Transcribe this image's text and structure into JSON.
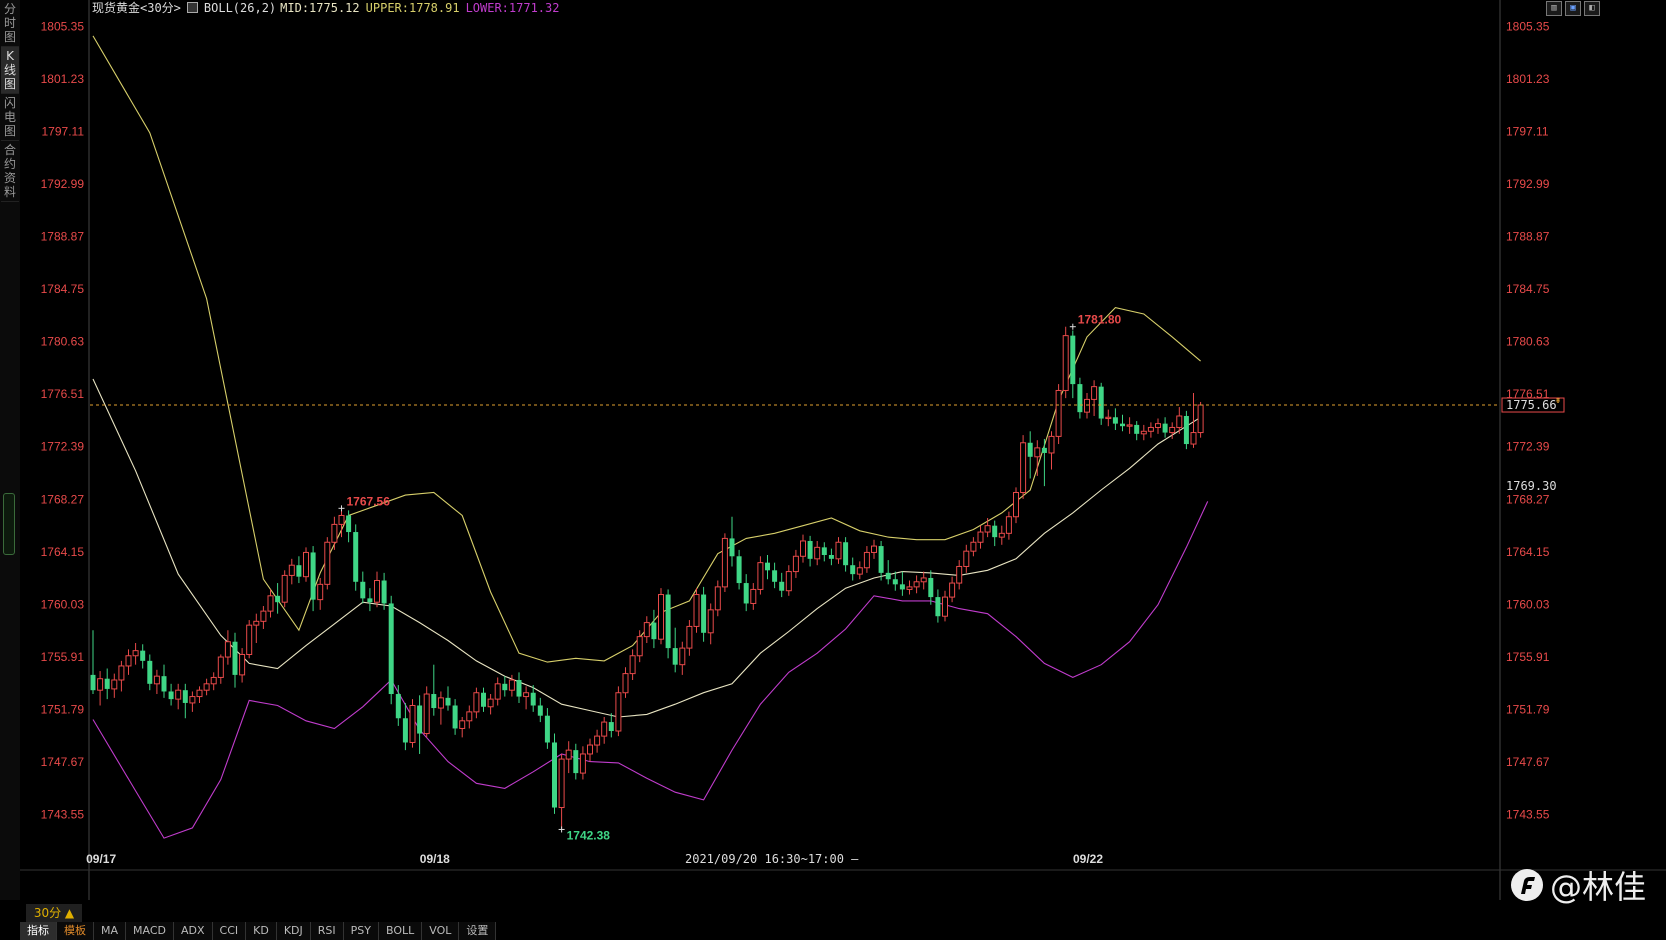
{
  "side_tabs": [
    "分时图",
    "K线图",
    "闪电图",
    "合约资料"
  ],
  "header": {
    "symbol": "现货黄金<30分>",
    "boll": "BOLL(26,2)",
    "mid": "MID:1775.12",
    "upper": "UPPER:1778.91",
    "lower": "LOWER:1771.32"
  },
  "period_button": "30分 ▲",
  "status_text": "2021/09/20 16:30~17:00 —",
  "bottom_tabs": [
    "指标",
    "模板",
    "MA",
    "MACD",
    "ADX",
    "CCI",
    "KD",
    "KDJ",
    "RSI",
    "PSY",
    "BOLL",
    "VOL",
    "设置"
  ],
  "watermark": "@林佳",
  "colors": {
    "up": "#e84a4a",
    "down": "#3fd686",
    "upper": "#d7cf6a",
    "mid": "#e8e4c2",
    "lower": "#c03ccc",
    "axis_label": "#e84a4a",
    "price_line": "#e0a030"
  },
  "chart_data": {
    "type": "candlestick",
    "y_ticks": [
      "1805.35",
      "1801.23",
      "1797.11",
      "1792.99",
      "1788.87",
      "1784.75",
      "1780.63",
      "1776.51",
      "1772.39",
      "1768.27",
      "1764.15",
      "1760.03",
      "1755.91",
      "1751.79",
      "1747.67",
      "1743.55"
    ],
    "ylim": [
      1740.77,
      1806.24
    ],
    "x_labels": [
      {
        "label": "09/17",
        "index": 1
      },
      {
        "label": "09/18",
        "index": 48
      },
      {
        "label": "09/22",
        "index": 140
      }
    ],
    "current_price": 1775.66,
    "current_price_label": "1775.66",
    "right_label_2": "1769.30",
    "right_label_2_value": 1769.3,
    "annotations": [
      {
        "label": "1767.56",
        "index": 35,
        "value": 1767.56,
        "type": "high"
      },
      {
        "label": "1742.38",
        "index": 66,
        "value": 1742.38,
        "type": "low"
      },
      {
        "label": "1781.80",
        "index": 138,
        "value": 1781.8,
        "type": "high"
      }
    ],
    "candles": [
      [
        1754.5,
        1758.0,
        1753.0,
        1753.3
      ],
      [
        1753.3,
        1754.8,
        1752.1,
        1754.2
      ],
      [
        1754.2,
        1755.0,
        1752.6,
        1753.4
      ],
      [
        1753.4,
        1754.6,
        1752.7,
        1754.1
      ],
      [
        1754.1,
        1755.6,
        1753.2,
        1755.2
      ],
      [
        1755.2,
        1756.5,
        1754.5,
        1756.0
      ],
      [
        1756.0,
        1757.0,
        1755.3,
        1756.4
      ],
      [
        1756.4,
        1756.9,
        1755.0,
        1755.6
      ],
      [
        1755.6,
        1756.1,
        1753.3,
        1753.8
      ],
      [
        1753.8,
        1754.9,
        1753.0,
        1754.4
      ],
      [
        1754.4,
        1755.3,
        1752.7,
        1753.2
      ],
      [
        1753.2,
        1753.8,
        1752.1,
        1752.6
      ],
      [
        1752.6,
        1753.8,
        1751.8,
        1753.3
      ],
      [
        1753.3,
        1753.8,
        1751.1,
        1752.3
      ],
      [
        1752.3,
        1753.2,
        1751.6,
        1752.8
      ],
      [
        1752.8,
        1753.6,
        1752.3,
        1753.3
      ],
      [
        1753.3,
        1754.2,
        1752.9,
        1753.8
      ],
      [
        1753.8,
        1754.7,
        1753.3,
        1754.3
      ],
      [
        1754.3,
        1756.1,
        1753.8,
        1755.9
      ],
      [
        1755.9,
        1758.0,
        1755.3,
        1757.1
      ],
      [
        1757.1,
        1757.8,
        1753.5,
        1754.5
      ],
      [
        1754.5,
        1756.6,
        1753.9,
        1756.1
      ],
      [
        1756.1,
        1758.8,
        1755.8,
        1758.4
      ],
      [
        1758.4,
        1759.3,
        1757.0,
        1758.7
      ],
      [
        1758.7,
        1759.9,
        1758.1,
        1759.5
      ],
      [
        1759.5,
        1761.2,
        1759.0,
        1760.7
      ],
      [
        1760.7,
        1761.7,
        1759.3,
        1760.2
      ],
      [
        1760.2,
        1762.7,
        1759.8,
        1762.3
      ],
      [
        1762.3,
        1763.6,
        1761.6,
        1763.1
      ],
      [
        1763.1,
        1763.8,
        1761.7,
        1762.2
      ],
      [
        1762.2,
        1764.5,
        1761.8,
        1764.1
      ],
      [
        1764.1,
        1764.6,
        1759.5,
        1760.4
      ],
      [
        1760.4,
        1762.1,
        1759.6,
        1761.6
      ],
      [
        1761.6,
        1765.3,
        1761.2,
        1764.9
      ],
      [
        1764.9,
        1766.9,
        1764.3,
        1766.3
      ],
      [
        1766.3,
        1767.56,
        1765.3,
        1767.0
      ],
      [
        1767.0,
        1767.4,
        1764.9,
        1765.7
      ],
      [
        1765.7,
        1766.3,
        1761.1,
        1761.8
      ],
      [
        1761.8,
        1762.6,
        1760.1,
        1760.5
      ],
      [
        1760.5,
        1761.3,
        1759.5,
        1760.2
      ],
      [
        1760.2,
        1762.6,
        1759.8,
        1761.9
      ],
      [
        1761.9,
        1762.5,
        1759.6,
        1760.1
      ],
      [
        1760.1,
        1760.7,
        1752.2,
        1753.0
      ],
      [
        1753.0,
        1753.7,
        1750.5,
        1751.1
      ],
      [
        1751.1,
        1752.3,
        1748.6,
        1749.2
      ],
      [
        1749.2,
        1752.6,
        1748.8,
        1752.1
      ],
      [
        1752.1,
        1752.9,
        1748.3,
        1749.9
      ],
      [
        1749.9,
        1753.6,
        1749.6,
        1753.0
      ],
      [
        1753.0,
        1755.3,
        1751.3,
        1751.9
      ],
      [
        1751.9,
        1753.2,
        1750.6,
        1752.7
      ],
      [
        1752.7,
        1753.6,
        1751.7,
        1752.1
      ],
      [
        1752.1,
        1752.6,
        1749.8,
        1750.3
      ],
      [
        1750.3,
        1751.2,
        1749.6,
        1750.9
      ],
      [
        1750.9,
        1752.1,
        1750.3,
        1751.6
      ],
      [
        1751.6,
        1753.5,
        1751.1,
        1753.1
      ],
      [
        1753.1,
        1753.5,
        1751.6,
        1752.0
      ],
      [
        1752.0,
        1753.0,
        1751.4,
        1752.6
      ],
      [
        1752.6,
        1754.3,
        1752.1,
        1753.8
      ],
      [
        1753.8,
        1754.4,
        1752.8,
        1753.3
      ],
      [
        1753.3,
        1754.5,
        1752.8,
        1754.1
      ],
      [
        1754.1,
        1754.7,
        1752.3,
        1752.8
      ],
      [
        1752.8,
        1753.6,
        1751.8,
        1753.1
      ],
      [
        1753.1,
        1753.7,
        1751.6,
        1752.1
      ],
      [
        1752.1,
        1752.7,
        1750.8,
        1751.3
      ],
      [
        1751.3,
        1751.9,
        1748.7,
        1749.2
      ],
      [
        1749.2,
        1749.9,
        1743.6,
        1744.1
      ],
      [
        1744.1,
        1748.3,
        1742.38,
        1747.9
      ],
      [
        1747.9,
        1749.3,
        1746.8,
        1748.6
      ],
      [
        1748.6,
        1749.1,
        1746.3,
        1746.8
      ],
      [
        1746.8,
        1748.9,
        1746.3,
        1748.3
      ],
      [
        1748.3,
        1749.5,
        1747.7,
        1749.0
      ],
      [
        1749.0,
        1750.2,
        1748.4,
        1749.7
      ],
      [
        1749.7,
        1751.2,
        1749.1,
        1750.8
      ],
      [
        1750.8,
        1751.5,
        1749.6,
        1750.1
      ],
      [
        1750.1,
        1753.6,
        1749.7,
        1753.1
      ],
      [
        1753.1,
        1755.1,
        1752.7,
        1754.6
      ],
      [
        1754.6,
        1756.5,
        1754.1,
        1756.0
      ],
      [
        1756.0,
        1758.0,
        1755.5,
        1757.5
      ],
      [
        1757.5,
        1759.1,
        1757.0,
        1758.6
      ],
      [
        1758.6,
        1759.6,
        1756.6,
        1757.3
      ],
      [
        1757.3,
        1761.3,
        1756.9,
        1760.8
      ],
      [
        1760.8,
        1761.2,
        1755.8,
        1756.6
      ],
      [
        1756.6,
        1758.2,
        1754.7,
        1755.3
      ],
      [
        1755.3,
        1757.1,
        1754.5,
        1756.6
      ],
      [
        1756.6,
        1758.8,
        1756.0,
        1758.3
      ],
      [
        1758.3,
        1761.3,
        1757.8,
        1760.8
      ],
      [
        1760.8,
        1761.4,
        1757.1,
        1757.8
      ],
      [
        1757.8,
        1760.1,
        1756.9,
        1759.6
      ],
      [
        1759.6,
        1761.9,
        1759.1,
        1761.4
      ],
      [
        1761.4,
        1765.6,
        1761.0,
        1765.2
      ],
      [
        1765.2,
        1766.9,
        1763.0,
        1763.8
      ],
      [
        1763.8,
        1764.3,
        1761.2,
        1761.7
      ],
      [
        1761.7,
        1762.4,
        1759.5,
        1760.1
      ],
      [
        1760.1,
        1761.7,
        1759.6,
        1761.2
      ],
      [
        1761.2,
        1763.8,
        1760.8,
        1763.3
      ],
      [
        1763.3,
        1763.9,
        1762.0,
        1762.7
      ],
      [
        1762.7,
        1763.3,
        1761.3,
        1761.8
      ],
      [
        1761.8,
        1762.5,
        1760.6,
        1761.1
      ],
      [
        1761.1,
        1763.1,
        1760.7,
        1762.6
      ],
      [
        1762.6,
        1764.3,
        1762.1,
        1763.8
      ],
      [
        1763.8,
        1765.5,
        1763.3,
        1765.0
      ],
      [
        1765.0,
        1765.4,
        1763.0,
        1763.6
      ],
      [
        1763.6,
        1765.0,
        1763.1,
        1764.5
      ],
      [
        1764.5,
        1764.9,
        1763.4,
        1763.9
      ],
      [
        1763.9,
        1764.4,
        1763.1,
        1763.6
      ],
      [
        1763.6,
        1765.3,
        1763.2,
        1764.9
      ],
      [
        1764.9,
        1765.3,
        1762.6,
        1763.1
      ],
      [
        1763.1,
        1763.7,
        1761.9,
        1762.4
      ],
      [
        1762.4,
        1763.4,
        1762.0,
        1762.9
      ],
      [
        1762.9,
        1764.6,
        1762.5,
        1764.1
      ],
      [
        1764.1,
        1765.1,
        1763.6,
        1764.6
      ],
      [
        1764.6,
        1765.0,
        1761.9,
        1762.5
      ],
      [
        1762.5,
        1763.5,
        1761.6,
        1762.0
      ],
      [
        1762.0,
        1762.6,
        1761.1,
        1761.6
      ],
      [
        1761.6,
        1762.6,
        1760.7,
        1761.2
      ],
      [
        1761.2,
        1761.9,
        1760.8,
        1761.4
      ],
      [
        1761.4,
        1762.3,
        1760.9,
        1761.8
      ],
      [
        1761.8,
        1762.6,
        1761.2,
        1762.1
      ],
      [
        1762.1,
        1762.7,
        1760.0,
        1760.6
      ],
      [
        1760.6,
        1761.2,
        1758.6,
        1759.1
      ],
      [
        1759.1,
        1761.1,
        1758.7,
        1760.6
      ],
      [
        1760.6,
        1762.2,
        1760.2,
        1761.7
      ],
      [
        1761.7,
        1763.5,
        1761.2,
        1763.0
      ],
      [
        1763.0,
        1764.7,
        1762.5,
        1764.2
      ],
      [
        1764.2,
        1765.3,
        1763.8,
        1764.9
      ],
      [
        1764.9,
        1766.2,
        1764.4,
        1765.7
      ],
      [
        1765.7,
        1766.8,
        1765.3,
        1766.2
      ],
      [
        1766.2,
        1766.6,
        1764.6,
        1765.3
      ],
      [
        1765.3,
        1766.2,
        1764.7,
        1765.6
      ],
      [
        1765.6,
        1767.3,
        1765.1,
        1766.9
      ],
      [
        1766.9,
        1769.2,
        1766.4,
        1768.8
      ],
      [
        1768.8,
        1773.3,
        1768.3,
        1772.7
      ],
      [
        1772.7,
        1773.6,
        1769.9,
        1771.6
      ],
      [
        1771.6,
        1772.9,
        1770.1,
        1772.3
      ],
      [
        1772.3,
        1773.0,
        1769.3,
        1771.9
      ],
      [
        1771.9,
        1773.6,
        1770.6,
        1773.2
      ],
      [
        1773.2,
        1777.3,
        1772.6,
        1776.8
      ],
      [
        1776.8,
        1781.8,
        1776.2,
        1781.1
      ],
      [
        1781.1,
        1781.5,
        1776.2,
        1777.3
      ],
      [
        1777.3,
        1777.8,
        1774.6,
        1775.1
      ],
      [
        1775.1,
        1776.6,
        1774.6,
        1776.1
      ],
      [
        1776.1,
        1777.6,
        1774.8,
        1777.1
      ],
      [
        1777.1,
        1777.4,
        1774.1,
        1774.6
      ],
      [
        1774.6,
        1775.3,
        1774.0,
        1774.7
      ],
      [
        1774.7,
        1775.4,
        1773.7,
        1774.2
      ],
      [
        1774.2,
        1774.9,
        1773.6,
        1774.0
      ],
      [
        1774.0,
        1774.7,
        1773.4,
        1774.1
      ],
      [
        1774.1,
        1774.4,
        1772.9,
        1773.4
      ],
      [
        1773.4,
        1774.1,
        1772.9,
        1773.6
      ],
      [
        1773.6,
        1774.3,
        1773.1,
        1773.9
      ],
      [
        1773.9,
        1774.6,
        1773.4,
        1774.2
      ],
      [
        1774.2,
        1774.7,
        1773.1,
        1773.5
      ],
      [
        1773.5,
        1774.3,
        1773.0,
        1773.9
      ],
      [
        1773.9,
        1775.5,
        1773.4,
        1774.8
      ],
      [
        1774.8,
        1775.2,
        1772.2,
        1772.6
      ],
      [
        1772.6,
        1776.6,
        1772.3,
        1773.5
      ],
      [
        1773.5,
        1775.9,
        1773.1,
        1775.66
      ]
    ],
    "upper": [
      [
        0,
        1804.6
      ],
      [
        8,
        1797.0
      ],
      [
        16,
        1784.0
      ],
      [
        24,
        1762.0
      ],
      [
        29,
        1758.0
      ],
      [
        32,
        1762.5
      ],
      [
        36,
        1767.0
      ],
      [
        40,
        1767.8
      ],
      [
        44,
        1768.6
      ],
      [
        48,
        1768.8
      ],
      [
        52,
        1767.0
      ],
      [
        56,
        1761.0
      ],
      [
        60,
        1756.2
      ],
      [
        64,
        1755.5
      ],
      [
        68,
        1755.8
      ],
      [
        72,
        1755.6
      ],
      [
        76,
        1756.8
      ],
      [
        80,
        1759.4
      ],
      [
        84,
        1760.3
      ],
      [
        88,
        1764.0
      ],
      [
        92,
        1765.2
      ],
      [
        96,
        1765.6
      ],
      [
        100,
        1766.2
      ],
      [
        104,
        1766.8
      ],
      [
        108,
        1765.8
      ],
      [
        112,
        1765.3
      ],
      [
        116,
        1765.1
      ],
      [
        120,
        1765.1
      ],
      [
        124,
        1765.9
      ],
      [
        128,
        1767.2
      ],
      [
        132,
        1769.0
      ],
      [
        136,
        1776.0
      ],
      [
        140,
        1781.0
      ],
      [
        144,
        1783.3
      ],
      [
        148,
        1782.8
      ],
      [
        152,
        1781.0
      ],
      [
        156,
        1779.1
      ]
    ],
    "mid": [
      [
        0,
        1777.7
      ],
      [
        6,
        1770.5
      ],
      [
        12,
        1762.4
      ],
      [
        18,
        1757.6
      ],
      [
        22,
        1755.4
      ],
      [
        26,
        1755.0
      ],
      [
        30,
        1756.8
      ],
      [
        34,
        1758.5
      ],
      [
        38,
        1760.2
      ],
      [
        42,
        1759.9
      ],
      [
        46,
        1758.6
      ],
      [
        50,
        1757.2
      ],
      [
        54,
        1755.6
      ],
      [
        58,
        1754.4
      ],
      [
        62,
        1753.5
      ],
      [
        66,
        1752.2
      ],
      [
        70,
        1751.7
      ],
      [
        74,
        1751.2
      ],
      [
        78,
        1751.4
      ],
      [
        82,
        1752.2
      ],
      [
        86,
        1753.1
      ],
      [
        90,
        1753.8
      ],
      [
        94,
        1756.2
      ],
      [
        98,
        1757.9
      ],
      [
        102,
        1759.7
      ],
      [
        106,
        1761.3
      ],
      [
        110,
        1762.1
      ],
      [
        114,
        1762.6
      ],
      [
        118,
        1762.5
      ],
      [
        122,
        1762.3
      ],
      [
        126,
        1762.7
      ],
      [
        130,
        1763.6
      ],
      [
        134,
        1765.6
      ],
      [
        138,
        1767.2
      ],
      [
        142,
        1769.0
      ],
      [
        146,
        1770.7
      ],
      [
        150,
        1772.6
      ],
      [
        154,
        1774.0
      ],
      [
        156,
        1774.7
      ]
    ],
    "lower": [
      [
        0,
        1751.0
      ],
      [
        6,
        1745.4
      ],
      [
        10,
        1741.7
      ],
      [
        14,
        1742.5
      ],
      [
        18,
        1746.3
      ],
      [
        22,
        1752.5
      ],
      [
        26,
        1752.1
      ],
      [
        30,
        1750.9
      ],
      [
        34,
        1750.3
      ],
      [
        38,
        1752.0
      ],
      [
        42,
        1754.1
      ],
      [
        46,
        1750.2
      ],
      [
        50,
        1747.7
      ],
      [
        54,
        1746.0
      ],
      [
        58,
        1745.6
      ],
      [
        62,
        1746.9
      ],
      [
        66,
        1748.3
      ],
      [
        70,
        1747.7
      ],
      [
        74,
        1747.6
      ],
      [
        78,
        1746.4
      ],
      [
        82,
        1745.3
      ],
      [
        86,
        1744.7
      ],
      [
        90,
        1748.6
      ],
      [
        94,
        1752.2
      ],
      [
        98,
        1754.7
      ],
      [
        102,
        1756.2
      ],
      [
        106,
        1758.1
      ],
      [
        110,
        1760.7
      ],
      [
        114,
        1760.3
      ],
      [
        118,
        1760.3
      ],
      [
        122,
        1759.7
      ],
      [
        126,
        1759.3
      ],
      [
        130,
        1757.5
      ],
      [
        134,
        1755.4
      ],
      [
        138,
        1754.3
      ],
      [
        142,
        1755.3
      ],
      [
        146,
        1757.1
      ],
      [
        150,
        1760.0
      ],
      [
        154,
        1764.5
      ],
      [
        157,
        1768.1
      ]
    ]
  }
}
